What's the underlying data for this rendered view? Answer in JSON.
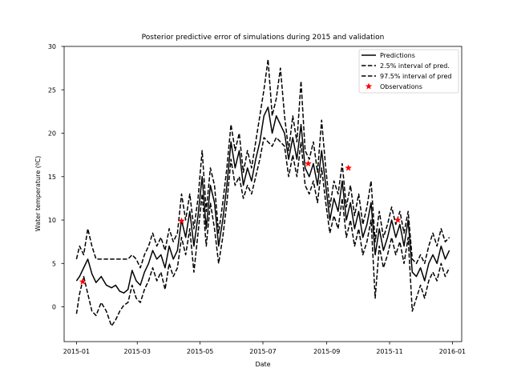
{
  "chart_data": {
    "type": "line",
    "title": "Posterior predictive error of simulations during 2015 and validation",
    "xlabel": "Date",
    "ylabel": "Water temperature (ºC)",
    "xlim": [
      "2014-12-20",
      "2016-01-10"
    ],
    "ylim": [
      -4,
      30
    ],
    "x_ticks": [
      "2015-01",
      "2015-03",
      "2015-05",
      "2015-07",
      "2015-09",
      "2015-11",
      "2016-01"
    ],
    "y_ticks": [
      0,
      5,
      10,
      15,
      20,
      25,
      30
    ],
    "grid": false,
    "legend_position": "top-right",
    "series": [
      {
        "name": "Predictions",
        "style": "solid",
        "color": "#000000",
        "points": [
          [
            "2015-01-01",
            3.0
          ],
          [
            "2015-01-04",
            3.5
          ],
          [
            "2015-01-08",
            4.5
          ],
          [
            "2015-01-12",
            5.5
          ],
          [
            "2015-01-16",
            3.8
          ],
          [
            "2015-01-20",
            2.8
          ],
          [
            "2015-01-25",
            3.5
          ],
          [
            "2015-01-30",
            2.5
          ],
          [
            "2015-02-04",
            2.2
          ],
          [
            "2015-02-08",
            2.5
          ],
          [
            "2015-02-12",
            1.8
          ],
          [
            "2015-02-16",
            1.6
          ],
          [
            "2015-02-20",
            2.0
          ],
          [
            "2015-02-24",
            4.2
          ],
          [
            "2015-02-28",
            3.0
          ],
          [
            "2015-03-04",
            2.5
          ],
          [
            "2015-03-08",
            4.0
          ],
          [
            "2015-03-12",
            5.0
          ],
          [
            "2015-03-16",
            6.5
          ],
          [
            "2015-03-20",
            5.5
          ],
          [
            "2015-03-24",
            6.0
          ],
          [
            "2015-03-28",
            4.5
          ],
          [
            "2015-04-01",
            7.0
          ],
          [
            "2015-04-05",
            5.5
          ],
          [
            "2015-04-09",
            6.5
          ],
          [
            "2015-04-13",
            10.0
          ],
          [
            "2015-04-17",
            8.0
          ],
          [
            "2015-04-21",
            11.0
          ],
          [
            "2015-04-25",
            7.0
          ],
          [
            "2015-04-29",
            10.5
          ],
          [
            "2015-05-03",
            15.0
          ],
          [
            "2015-05-07",
            9.0
          ],
          [
            "2015-05-11",
            14.0
          ],
          [
            "2015-05-15",
            12.0
          ],
          [
            "2015-05-19",
            7.0
          ],
          [
            "2015-05-23",
            10.0
          ],
          [
            "2015-05-27",
            14.0
          ],
          [
            "2015-05-31",
            19.0
          ],
          [
            "2015-06-04",
            16.0
          ],
          [
            "2015-06-08",
            18.0
          ],
          [
            "2015-06-12",
            14.0
          ],
          [
            "2015-06-16",
            16.0
          ],
          [
            "2015-06-20",
            14.5
          ],
          [
            "2015-06-24",
            17.0
          ],
          [
            "2015-06-28",
            19.0
          ],
          [
            "2015-07-02",
            22.0
          ],
          [
            "2015-07-06",
            23.0
          ],
          [
            "2015-07-10",
            20.0
          ],
          [
            "2015-07-14",
            22.0
          ],
          [
            "2015-07-18",
            21.0
          ],
          [
            "2015-07-22",
            20.0
          ],
          [
            "2015-07-26",
            17.0
          ],
          [
            "2015-07-30",
            19.5
          ],
          [
            "2015-08-03",
            17.0
          ],
          [
            "2015-08-07",
            21.0
          ],
          [
            "2015-08-11",
            16.0
          ],
          [
            "2015-08-15",
            15.0
          ],
          [
            "2015-08-19",
            16.5
          ],
          [
            "2015-08-23",
            14.0
          ],
          [
            "2015-08-27",
            18.0
          ],
          [
            "2015-08-31",
            14.0
          ],
          [
            "2015-09-04",
            10.0
          ],
          [
            "2015-09-08",
            12.5
          ],
          [
            "2015-09-12",
            11.0
          ],
          [
            "2015-09-16",
            14.5
          ],
          [
            "2015-09-20",
            10.0
          ],
          [
            "2015-09-24",
            12.0
          ],
          [
            "2015-09-28",
            9.0
          ],
          [
            "2015-10-02",
            11.0
          ],
          [
            "2015-10-06",
            8.0
          ],
          [
            "2015-10-10",
            9.5
          ],
          [
            "2015-10-14",
            12.0
          ],
          [
            "2015-10-18",
            6.0
          ],
          [
            "2015-10-22",
            9.0
          ],
          [
            "2015-10-26",
            6.5
          ],
          [
            "2015-10-30",
            8.0
          ],
          [
            "2015-11-03",
            10.0
          ],
          [
            "2015-11-07",
            8.0
          ],
          [
            "2015-11-11",
            9.5
          ],
          [
            "2015-11-15",
            7.0
          ],
          [
            "2015-11-19",
            10.0
          ],
          [
            "2015-11-23",
            4.0
          ],
          [
            "2015-11-27",
            3.5
          ],
          [
            "2015-12-01",
            4.5
          ],
          [
            "2015-12-05",
            3.0
          ],
          [
            "2015-12-09",
            5.0
          ],
          [
            "2015-12-13",
            6.0
          ],
          [
            "2015-12-17",
            5.0
          ],
          [
            "2015-12-21",
            7.0
          ],
          [
            "2015-12-25",
            5.5
          ],
          [
            "2015-12-29",
            6.5
          ]
        ]
      },
      {
        "name": "2.5% interval of pred.",
        "style": "dashed",
        "color": "#000000",
        "points": [
          [
            "2015-01-01",
            -0.8
          ],
          [
            "2015-01-04",
            1.5
          ],
          [
            "2015-01-08",
            3.5
          ],
          [
            "2015-01-12",
            1.5
          ],
          [
            "2015-01-16",
            -0.5
          ],
          [
            "2015-01-20",
            -1.0
          ],
          [
            "2015-01-25",
            0.5
          ],
          [
            "2015-01-30",
            -0.5
          ],
          [
            "2015-02-04",
            -2.2
          ],
          [
            "2015-02-08",
            -1.5
          ],
          [
            "2015-02-12",
            -0.5
          ],
          [
            "2015-02-16",
            0.2
          ],
          [
            "2015-02-20",
            0.5
          ],
          [
            "2015-02-24",
            2.5
          ],
          [
            "2015-02-28",
            1.0
          ],
          [
            "2015-03-04",
            0.5
          ],
          [
            "2015-03-08",
            2.0
          ],
          [
            "2015-03-12",
            3.0
          ],
          [
            "2015-03-16",
            4.5
          ],
          [
            "2015-03-20",
            3.0
          ],
          [
            "2015-03-24",
            4.0
          ],
          [
            "2015-03-28",
            2.0
          ],
          [
            "2015-04-01",
            5.0
          ],
          [
            "2015-04-05",
            3.5
          ],
          [
            "2015-04-09",
            4.5
          ],
          [
            "2015-04-13",
            8.0
          ],
          [
            "2015-04-17",
            6.0
          ],
          [
            "2015-04-21",
            9.0
          ],
          [
            "2015-04-25",
            4.0
          ],
          [
            "2015-04-29",
            8.5
          ],
          [
            "2015-05-03",
            13.0
          ],
          [
            "2015-05-07",
            7.0
          ],
          [
            "2015-05-11",
            12.0
          ],
          [
            "2015-05-15",
            9.0
          ],
          [
            "2015-05-19",
            5.0
          ],
          [
            "2015-05-23",
            8.0
          ],
          [
            "2015-05-27",
            12.0
          ],
          [
            "2015-05-31",
            17.0
          ],
          [
            "2015-06-04",
            14.0
          ],
          [
            "2015-06-08",
            15.0
          ],
          [
            "2015-06-12",
            12.5
          ],
          [
            "2015-06-16",
            14.0
          ],
          [
            "2015-06-20",
            13.0
          ],
          [
            "2015-06-24",
            15.0
          ],
          [
            "2015-06-28",
            17.0
          ],
          [
            "2015-07-02",
            19.5
          ],
          [
            "2015-07-06",
            19.0
          ],
          [
            "2015-07-10",
            18.5
          ],
          [
            "2015-07-14",
            19.5
          ],
          [
            "2015-07-18",
            19.0
          ],
          [
            "2015-07-22",
            18.5
          ],
          [
            "2015-07-26",
            15.0
          ],
          [
            "2015-07-30",
            17.5
          ],
          [
            "2015-08-03",
            15.0
          ],
          [
            "2015-08-07",
            19.0
          ],
          [
            "2015-08-11",
            14.0
          ],
          [
            "2015-08-15",
            13.0
          ],
          [
            "2015-08-19",
            14.5
          ],
          [
            "2015-08-23",
            12.0
          ],
          [
            "2015-08-27",
            16.0
          ],
          [
            "2015-08-31",
            12.0
          ],
          [
            "2015-09-04",
            8.5
          ],
          [
            "2015-09-08",
            10.5
          ],
          [
            "2015-09-12",
            9.0
          ],
          [
            "2015-09-16",
            12.5
          ],
          [
            "2015-09-20",
            8.0
          ],
          [
            "2015-09-24",
            10.0
          ],
          [
            "2015-09-28",
            7.0
          ],
          [
            "2015-10-02",
            9.0
          ],
          [
            "2015-10-06",
            6.0
          ],
          [
            "2015-10-10",
            7.5
          ],
          [
            "2015-10-14",
            10.0
          ],
          [
            "2015-10-18",
            1.0
          ],
          [
            "2015-10-22",
            7.0
          ],
          [
            "2015-10-26",
            4.5
          ],
          [
            "2015-10-30",
            6.0
          ],
          [
            "2015-11-03",
            8.0
          ],
          [
            "2015-11-07",
            6.0
          ],
          [
            "2015-11-11",
            7.5
          ],
          [
            "2015-11-15",
            5.0
          ],
          [
            "2015-11-19",
            8.0
          ],
          [
            "2015-11-23",
            -0.5
          ],
          [
            "2015-11-27",
            1.0
          ],
          [
            "2015-12-01",
            2.5
          ],
          [
            "2015-12-05",
            1.0
          ],
          [
            "2015-12-09",
            3.0
          ],
          [
            "2015-12-13",
            4.0
          ],
          [
            "2015-12-17",
            3.0
          ],
          [
            "2015-12-21",
            5.0
          ],
          [
            "2015-12-25",
            3.5
          ],
          [
            "2015-12-29",
            4.5
          ]
        ]
      },
      {
        "name": "97.5% interval of pred",
        "style": "dashed",
        "color": "#000000",
        "points": [
          [
            "2015-01-01",
            5.5
          ],
          [
            "2015-01-04",
            7.0
          ],
          [
            "2015-01-08",
            6.0
          ],
          [
            "2015-01-12",
            9.0
          ],
          [
            "2015-01-16",
            7.0
          ],
          [
            "2015-01-20",
            5.5
          ],
          [
            "2015-01-25",
            5.5
          ],
          [
            "2015-01-30",
            5.5
          ],
          [
            "2015-02-04",
            5.5
          ],
          [
            "2015-02-08",
            5.5
          ],
          [
            "2015-02-12",
            5.5
          ],
          [
            "2015-02-16",
            5.5
          ],
          [
            "2015-02-20",
            5.5
          ],
          [
            "2015-02-24",
            6.0
          ],
          [
            "2015-02-28",
            5.5
          ],
          [
            "2015-03-04",
            4.5
          ],
          [
            "2015-03-08",
            6.0
          ],
          [
            "2015-03-12",
            7.0
          ],
          [
            "2015-03-16",
            8.5
          ],
          [
            "2015-03-20",
            7.0
          ],
          [
            "2015-03-24",
            8.0
          ],
          [
            "2015-03-28",
            6.5
          ],
          [
            "2015-04-01",
            9.0
          ],
          [
            "2015-04-05",
            7.5
          ],
          [
            "2015-04-09",
            8.5
          ],
          [
            "2015-04-13",
            13.0
          ],
          [
            "2015-04-17",
            10.0
          ],
          [
            "2015-04-21",
            13.0
          ],
          [
            "2015-04-25",
            9.0
          ],
          [
            "2015-04-29",
            12.5
          ],
          [
            "2015-05-03",
            18.0
          ],
          [
            "2015-05-07",
            11.0
          ],
          [
            "2015-05-11",
            16.0
          ],
          [
            "2015-05-15",
            14.0
          ],
          [
            "2015-05-19",
            8.5
          ],
          [
            "2015-05-23",
            12.0
          ],
          [
            "2015-05-27",
            16.0
          ],
          [
            "2015-05-31",
            21.0
          ],
          [
            "2015-06-04",
            18.0
          ],
          [
            "2015-06-08",
            20.0
          ],
          [
            "2015-06-12",
            15.5
          ],
          [
            "2015-06-16",
            18.0
          ],
          [
            "2015-06-20",
            16.0
          ],
          [
            "2015-06-24",
            19.0
          ],
          [
            "2015-06-28",
            22.0
          ],
          [
            "2015-07-02",
            25.0
          ],
          [
            "2015-07-06",
            28.5
          ],
          [
            "2015-07-10",
            22.0
          ],
          [
            "2015-07-14",
            24.0
          ],
          [
            "2015-07-18",
            27.5
          ],
          [
            "2015-07-22",
            22.0
          ],
          [
            "2015-07-26",
            18.0
          ],
          [
            "2015-07-30",
            22.0
          ],
          [
            "2015-08-03",
            19.0
          ],
          [
            "2015-08-07",
            26.0
          ],
          [
            "2015-08-11",
            18.0
          ],
          [
            "2015-08-15",
            17.0
          ],
          [
            "2015-08-19",
            19.0
          ],
          [
            "2015-08-23",
            15.5
          ],
          [
            "2015-08-27",
            21.5
          ],
          [
            "2015-08-31",
            16.0
          ],
          [
            "2015-09-04",
            11.5
          ],
          [
            "2015-09-08",
            14.5
          ],
          [
            "2015-09-12",
            13.0
          ],
          [
            "2015-09-16",
            16.5
          ],
          [
            "2015-09-20",
            11.5
          ],
          [
            "2015-09-24",
            14.0
          ],
          [
            "2015-09-28",
            10.5
          ],
          [
            "2015-10-02",
            13.0
          ],
          [
            "2015-10-06",
            9.5
          ],
          [
            "2015-10-10",
            11.5
          ],
          [
            "2015-10-14",
            14.5
          ],
          [
            "2015-10-18",
            7.5
          ],
          [
            "2015-10-22",
            11.0
          ],
          [
            "2015-10-26",
            8.0
          ],
          [
            "2015-10-30",
            9.5
          ],
          [
            "2015-11-03",
            11.5
          ],
          [
            "2015-11-07",
            9.5
          ],
          [
            "2015-11-11",
            11.0
          ],
          [
            "2015-11-15",
            8.5
          ],
          [
            "2015-11-19",
            11.0
          ],
          [
            "2015-11-23",
            5.5
          ],
          [
            "2015-11-27",
            5.0
          ],
          [
            "2015-12-01",
            6.0
          ],
          [
            "2015-12-05",
            5.0
          ],
          [
            "2015-12-09",
            7.0
          ],
          [
            "2015-12-13",
            8.5
          ],
          [
            "2015-12-17",
            7.0
          ],
          [
            "2015-12-21",
            9.0
          ],
          [
            "2015-12-25",
            7.5
          ],
          [
            "2015-12-29",
            8.0
          ]
        ]
      },
      {
        "name": "Observations",
        "style": "markers",
        "marker": "star",
        "color": "#ff0000",
        "points": [
          [
            "2015-01-07",
            2.9
          ],
          [
            "2015-04-13",
            9.9
          ],
          [
            "2015-08-14",
            16.5
          ],
          [
            "2015-09-22",
            16.0
          ],
          [
            "2015-11-09",
            10.0
          ]
        ]
      }
    ]
  }
}
